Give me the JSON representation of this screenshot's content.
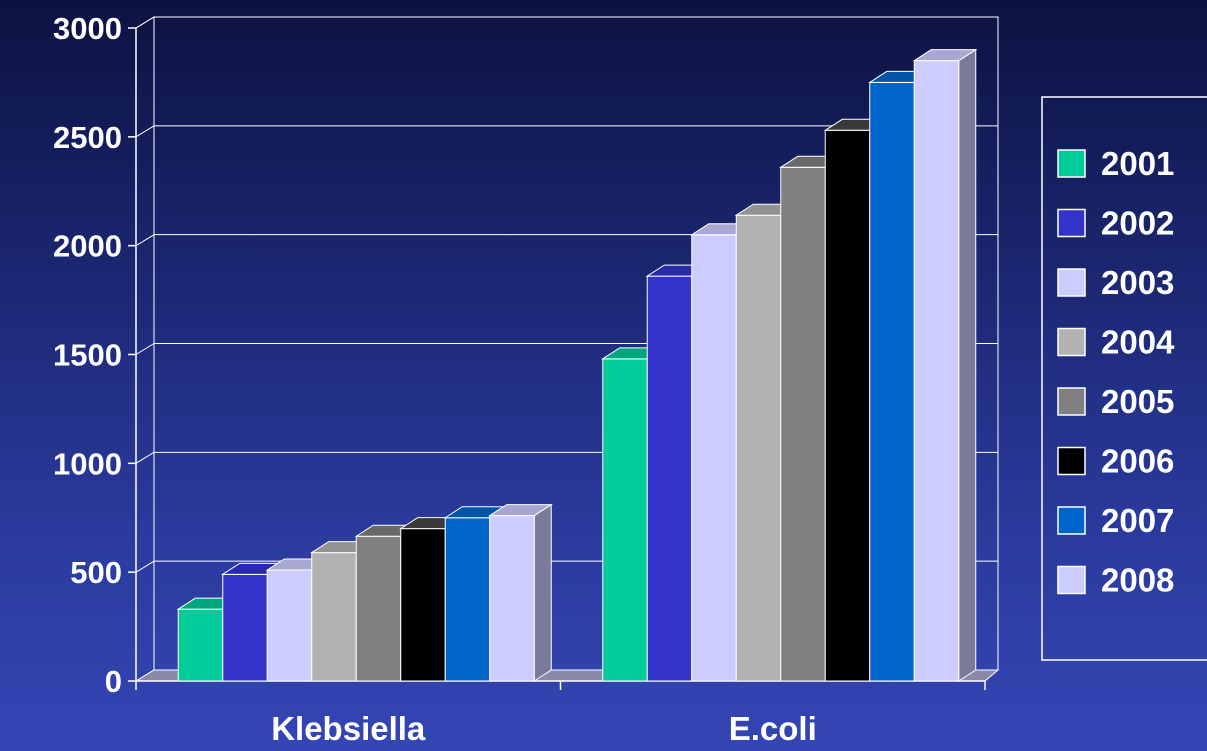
{
  "chart_data": {
    "type": "bar",
    "categories": [
      "Klebsiella",
      "E.coli"
    ],
    "series": [
      {
        "name": "2001",
        "values": [
          330,
          1480
        ],
        "color": "#00cc99"
      },
      {
        "name": "2002",
        "values": [
          490,
          1860
        ],
        "color": "#3333cc"
      },
      {
        "name": "2003",
        "values": [
          510,
          2050
        ],
        "color": "#ccccff"
      },
      {
        "name": "2004",
        "values": [
          590,
          2140
        ],
        "color": "#b2b2b2"
      },
      {
        "name": "2005",
        "values": [
          665,
          2360
        ],
        "color": "#808080"
      },
      {
        "name": "2006",
        "values": [
          700,
          2530
        ],
        "color": "#000000"
      },
      {
        "name": "2007",
        "values": [
          750,
          2750
        ],
        "color": "#0066cc"
      },
      {
        "name": "2008",
        "values": [
          760,
          2850
        ],
        "color": "#ccccff"
      }
    ],
    "ylim": [
      0,
      3000
    ],
    "yticks": [
      0,
      500,
      1000,
      1500,
      2000,
      2500,
      3000
    ],
    "grid": true,
    "three_d": true,
    "legend_position": "right"
  }
}
